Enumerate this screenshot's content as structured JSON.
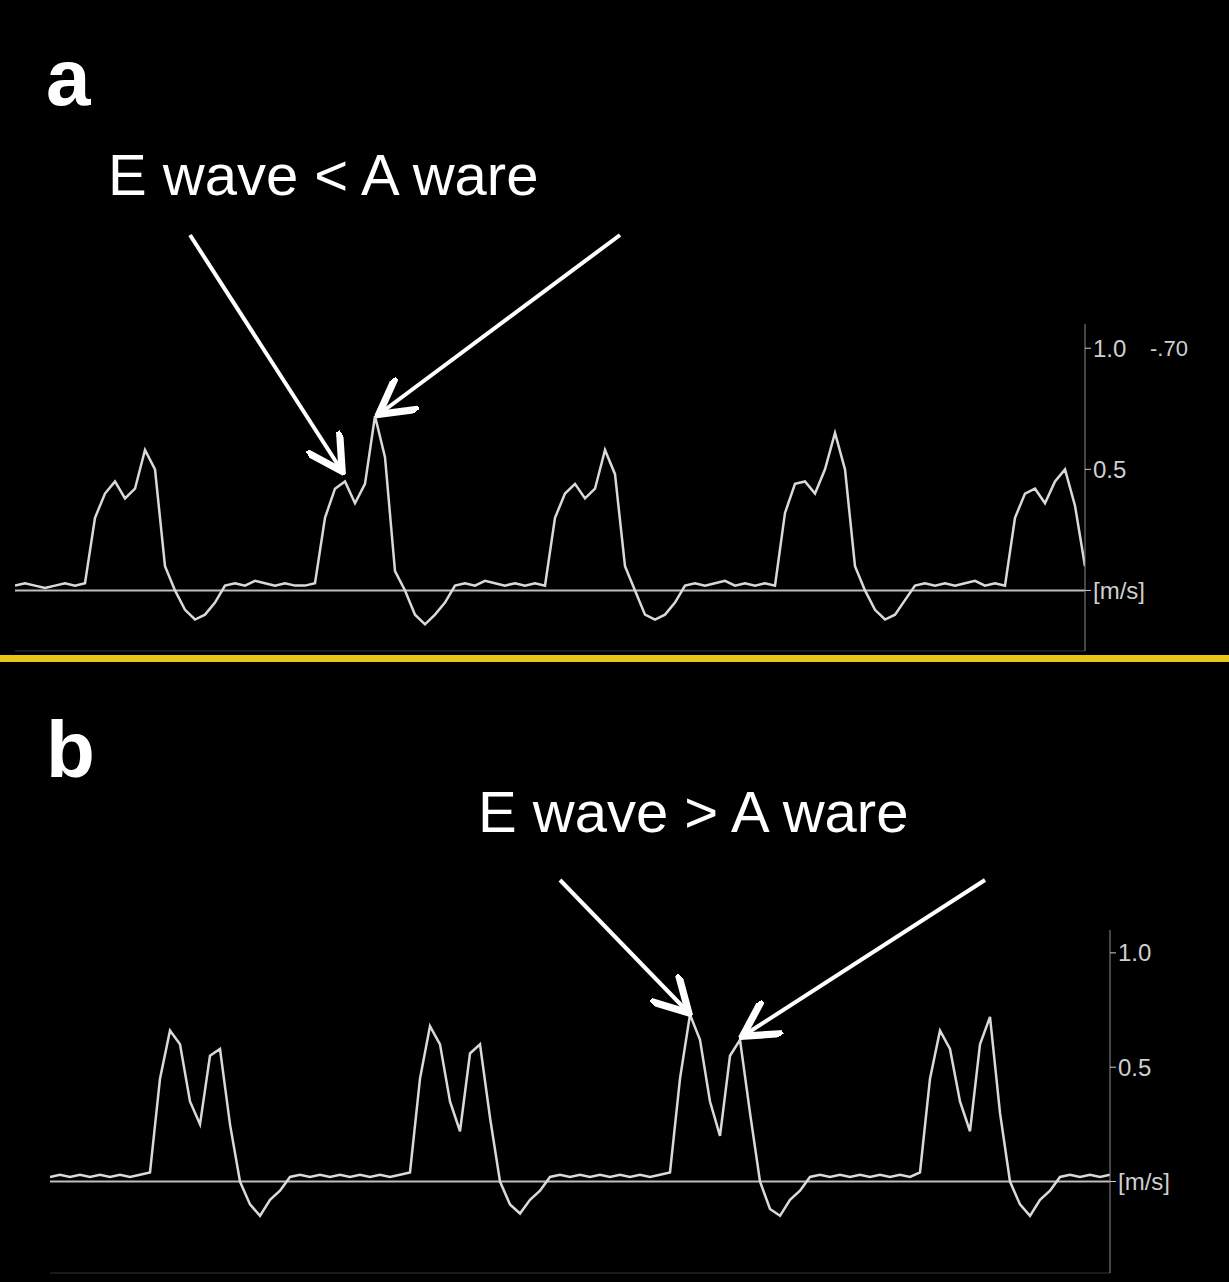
{
  "chart_data": [
    {
      "type": "line",
      "panel": "a",
      "title": "E wave < A ware",
      "annotations": [
        "-.70"
      ],
      "x": [
        0,
        1,
        2,
        3,
        4,
        5,
        6,
        7,
        8,
        9,
        10,
        11,
        12,
        13,
        14,
        15,
        16,
        17,
        18,
        19,
        20,
        21,
        22,
        23,
        24,
        25,
        26,
        27,
        28,
        29,
        30,
        31,
        32,
        33,
        34,
        35,
        36,
        37,
        38,
        39,
        40,
        41,
        42,
        43,
        44,
        45,
        46,
        47,
        48,
        49,
        50,
        51,
        52,
        53,
        54,
        55,
        56,
        57,
        58,
        59,
        60,
        61,
        62,
        63,
        64,
        65,
        66,
        67,
        68,
        69,
        70,
        71,
        72,
        73,
        74,
        75,
        76,
        77,
        78,
        79,
        80,
        81,
        82,
        83,
        84,
        85,
        86,
        87,
        88,
        89,
        90,
        91,
        92,
        93,
        94,
        95,
        96,
        97,
        98,
        99,
        100,
        101,
        102,
        103,
        104,
        105,
        106,
        107
      ],
      "values": [
        0.02,
        0.03,
        0.02,
        0.01,
        0.02,
        0.03,
        0.02,
        0.03,
        0.3,
        0.4,
        0.45,
        0.38,
        0.42,
        0.58,
        0.5,
        0.1,
        0,
        -0.08,
        -0.12,
        -0.1,
        -0.05,
        0.02,
        0.03,
        0.02,
        0.04,
        0.03,
        0.02,
        0.03,
        0.02,
        0.02,
        0.03,
        0.3,
        0.42,
        0.45,
        0.36,
        0.44,
        0.72,
        0.55,
        0.08,
        0,
        -0.1,
        -0.14,
        -0.1,
        -0.05,
        0.02,
        0.03,
        0.02,
        0.04,
        0.03,
        0.02,
        0.03,
        0.02,
        0.03,
        0.02,
        0.3,
        0.4,
        0.44,
        0.38,
        0.42,
        0.58,
        0.48,
        0.1,
        0,
        -0.1,
        -0.12,
        -0.1,
        -0.05,
        0.02,
        0.03,
        0.02,
        0.03,
        0.04,
        0.02,
        0.03,
        0.02,
        0.03,
        0.02,
        0.32,
        0.44,
        0.45,
        0.4,
        0.5,
        0.65,
        0.5,
        0.1,
        0,
        -0.08,
        -0.12,
        -0.1,
        -0.04,
        0.02,
        0.03,
        0.02,
        0.03,
        0.02,
        0.03,
        0.04,
        0.02,
        0.03,
        0.02,
        0.3,
        0.4,
        0.42,
        0.36,
        0.45,
        0.5,
        0.35,
        0.1
      ],
      "color": "#d9d9d9",
      "xlim": [
        0,
        107
      ],
      "ylim": [
        -0.25,
        1.1
      ],
      "yticks": [
        {
          "value": 0,
          "label": "[m/s]"
        },
        0.5,
        {
          "value": 1,
          "label": "1.0"
        }
      ],
      "tick_labels": "y"
    },
    {
      "type": "line",
      "panel": "b",
      "title": "E wave > A ware",
      "x": [
        0,
        1,
        2,
        3,
        4,
        5,
        6,
        7,
        8,
        9,
        10,
        11,
        12,
        13,
        14,
        15,
        16,
        17,
        18,
        19,
        20,
        21,
        22,
        23,
        24,
        25,
        26,
        27,
        28,
        29,
        30,
        31,
        32,
        33,
        34,
        35,
        36,
        37,
        38,
        39,
        40,
        41,
        42,
        43,
        44,
        45,
        46,
        47,
        48,
        49,
        50,
        51,
        52,
        53,
        54,
        55,
        56,
        57,
        58,
        59,
        60,
        61,
        62,
        63,
        64,
        65,
        66,
        67,
        68,
        69,
        70,
        71,
        72,
        73,
        74,
        75,
        76,
        77,
        78,
        79,
        80,
        81,
        82,
        83,
        84,
        85,
        86,
        87,
        88,
        89,
        90,
        91,
        92,
        93,
        94,
        95,
        96,
        97,
        98,
        99,
        100,
        101,
        102,
        103,
        104,
        105,
        106
      ],
      "values": [
        0.02,
        0.03,
        0.02,
        0.03,
        0.02,
        0.03,
        0.02,
        0.03,
        0.02,
        0.03,
        0.04,
        0.45,
        0.66,
        0.6,
        0.35,
        0.25,
        0.55,
        0.58,
        0.25,
        0,
        -0.1,
        -0.15,
        -0.08,
        -0.04,
        0.02,
        0.03,
        0.02,
        0.03,
        0.02,
        0.03,
        0.02,
        0.03,
        0.02,
        0.03,
        0.02,
        0.03,
        0.04,
        0.45,
        0.68,
        0.6,
        0.35,
        0.22,
        0.56,
        0.6,
        0.28,
        0,
        -0.1,
        -0.14,
        -0.08,
        -0.04,
        0.02,
        0.03,
        0.02,
        0.03,
        0.02,
        0.03,
        0.02,
        0.03,
        0.02,
        0.03,
        0.02,
        0.03,
        0.04,
        0.45,
        0.73,
        0.62,
        0.35,
        0.2,
        0.55,
        0.62,
        0.3,
        0,
        -0.12,
        -0.15,
        -0.08,
        -0.04,
        0.02,
        0.03,
        0.02,
        0.03,
        0.02,
        0.03,
        0.02,
        0.03,
        0.02,
        0.03,
        0.02,
        0.04,
        0.45,
        0.66,
        0.58,
        0.35,
        0.22,
        0.6,
        0.72,
        0.3,
        0,
        -0.1,
        -0.15,
        -0.08,
        -0.04,
        0.02,
        0.03,
        0.02,
        0.03,
        0.02,
        0.03
      ],
      "color": "#d9d9d9",
      "xlim": [
        0,
        106
      ],
      "ylim": [
        -0.4,
        1.1
      ],
      "yticks": [
        {
          "value": 0,
          "label": "[m/s]"
        },
        0.5,
        {
          "value": 1,
          "label": "1.0"
        }
      ],
      "tick_labels": "y"
    }
  ]
}
